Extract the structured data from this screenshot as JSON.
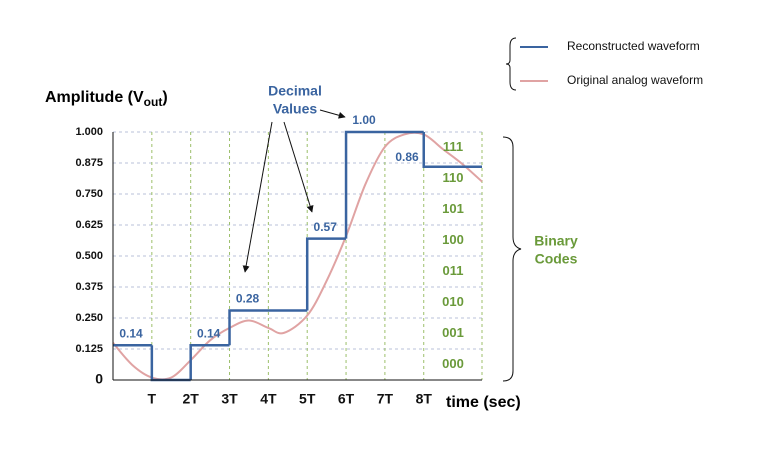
{
  "chart_data": {
    "type": "line",
    "y_label": {
      "text": "Amplitude (V",
      "sub": "out",
      "close": ")"
    },
    "x_label": "time (sec)",
    "xlim": [
      0,
      9.5
    ],
    "ylim": [
      0,
      1
    ],
    "xticks": [
      {
        "value": 1,
        "label": "T"
      },
      {
        "value": 2,
        "label": "2T"
      },
      {
        "value": 3,
        "label": "3T"
      },
      {
        "value": 4,
        "label": "4T"
      },
      {
        "value": 5,
        "label": "5T"
      },
      {
        "value": 6,
        "label": "6T"
      },
      {
        "value": 7,
        "label": "7T"
      },
      {
        "value": 8,
        "label": "8T"
      }
    ],
    "yticks": [
      0,
      0.125,
      {
        "value": 0.25,
        "label": "0.250"
      },
      0.375,
      {
        "value": 0.5,
        "label": "0.500"
      },
      0.625,
      {
        "value": 0.75,
        "label": "0.750"
      },
      0.875,
      {
        "value": 1,
        "label": "1.000"
      }
    ],
    "grid": true,
    "series": [
      {
        "name": "Reconstructed waveform",
        "color": "#3a64a0",
        "step": true,
        "x": [
          0,
          1,
          2,
          3,
          5,
          6,
          8
        ],
        "values": [
          0.14,
          0,
          0.14,
          0.28,
          0.57,
          1,
          0.86
        ],
        "value_labels": [
          "0.14",
          null,
          "0.14",
          "0.28",
          "0.57",
          "1.00",
          "0.86"
        ]
      },
      {
        "name": "Original analog waveform",
        "color": "#e0a3a3",
        "x": [
          0,
          0.5,
          1,
          1.5,
          2,
          2.5,
          3,
          3.5,
          4,
          4.4,
          5,
          5.5,
          6,
          6.5,
          7,
          7.5,
          8,
          8.5,
          9,
          9.5
        ],
        "values": [
          0.15,
          0.06,
          0.01,
          0.01,
          0.08,
          0.16,
          0.21,
          0.24,
          0.21,
          0.19,
          0.26,
          0.4,
          0.58,
          0.79,
          0.94,
          0.99,
          0.99,
          0.93,
          0.87,
          0.8
        ]
      }
    ],
    "binary_codes": [
      "000",
      "001",
      "010",
      "011",
      "100",
      "101",
      "110",
      "111"
    ],
    "annotations": {
      "decimal_values": [
        "Decimal",
        "Values"
      ],
      "binary_codes": [
        "Binary",
        "Codes"
      ]
    }
  }
}
